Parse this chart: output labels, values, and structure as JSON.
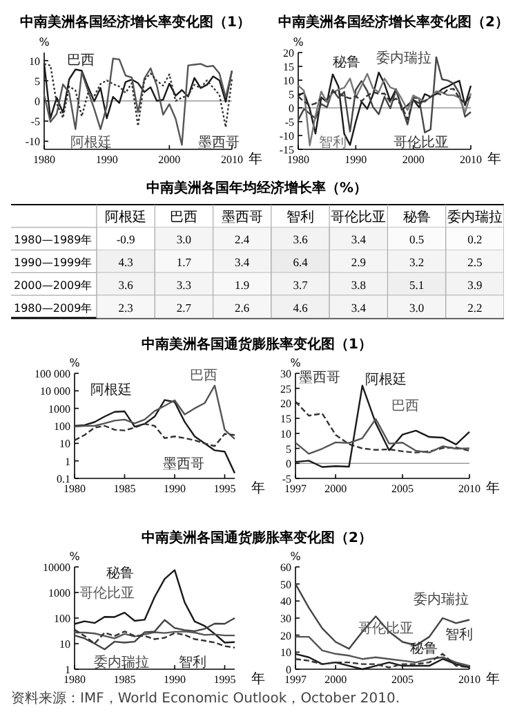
{
  "chart_data": [
    {
      "type": "line",
      "title": "中南美洲各国经济增长率变化图（1）",
      "ylabel": "%",
      "xlabel": "年",
      "xlim": [
        1980,
        2010
      ],
      "xticks": [
        1980,
        1990,
        2000,
        2010
      ],
      "ylim": [
        -12,
        12
      ],
      "yticks": [
        -10,
        -5,
        0,
        5,
        10
      ],
      "ref_lines": [
        {
          "axis": "y",
          "value": 0,
          "color": "#999999"
        }
      ],
      "x": [
        1980,
        1981,
        1982,
        1983,
        1984,
        1985,
        1986,
        1987,
        1988,
        1989,
        1990,
        1991,
        1992,
        1993,
        1994,
        1995,
        1996,
        1997,
        1998,
        1999,
        2000,
        2001,
        2002,
        2003,
        2004,
        2005,
        2006,
        2007,
        2008,
        2009,
        2010
      ],
      "series": [
        {
          "name": "巴西",
          "color": "#1a1a1a",
          "line_style": "solid",
          "values": [
            9.2,
            -4.3,
            0.8,
            -2.9,
            5.4,
            7.8,
            7.5,
            3.5,
            -0.1,
            3.2,
            -4.3,
            1.0,
            -0.5,
            4.7,
            5.3,
            4.4,
            2.2,
            3.4,
            0.0,
            0.3,
            4.3,
            1.3,
            2.7,
            1.1,
            5.7,
            3.2,
            4.0,
            6.1,
            5.1,
            -0.2,
            7.5
          ]
        },
        {
          "name": "阿根廷",
          "color": "#555555",
          "line_style": "solid",
          "values": [
            1.5,
            -5.2,
            -3.2,
            4.1,
            2.0,
            -7.0,
            7.1,
            2.5,
            -2.0,
            -7.0,
            -1.3,
            10.5,
            10.3,
            6.3,
            5.8,
            -2.8,
            5.5,
            8.1,
            3.8,
            -3.4,
            -0.8,
            -4.4,
            -10.9,
            8.8,
            9.0,
            9.2,
            8.5,
            8.7,
            6.8,
            0.9,
            7.5
          ]
        },
        {
          "name": "墨西哥",
          "color": "#333333",
          "line_style": "dotted",
          "values": [
            9.2,
            8.8,
            -0.6,
            -4.2,
            3.6,
            2.6,
            -3.8,
            1.9,
            1.2,
            4.2,
            5.1,
            4.2,
            3.6,
            2.0,
            4.4,
            -6.2,
            5.2,
            6.8,
            5.0,
            3.8,
            6.6,
            0.0,
            0.8,
            1.4,
            4.0,
            3.2,
            5.1,
            3.3,
            1.5,
            -6.5,
            5.5
          ]
        }
      ]
    },
    {
      "type": "line",
      "title": "中南美洲各国经济增长率变化图（2）",
      "ylabel": "%",
      "xlabel": "年",
      "xlim": [
        1980,
        2010
      ],
      "xticks": [
        1980,
        1990,
        2000,
        2010
      ],
      "ylim": [
        -15,
        20
      ],
      "yticks": [
        -15,
        -10,
        -5,
        0,
        5,
        10,
        15,
        20
      ],
      "ref_lines": [
        {
          "axis": "y",
          "value": 0,
          "color": "#999999"
        }
      ],
      "x": [
        1980,
        1981,
        1982,
        1983,
        1984,
        1985,
        1986,
        1987,
        1988,
        1989,
        1990,
        1991,
        1992,
        1993,
        1994,
        1995,
        1996,
        1997,
        1998,
        1999,
        2000,
        2001,
        2002,
        2003,
        2004,
        2005,
        2006,
        2007,
        2008,
        2009,
        2010
      ],
      "series": [
        {
          "name": "秘鲁",
          "color": "#1a1a1a",
          "line_style": "solid",
          "values": [
            4.4,
            5.5,
            -0.3,
            -9.3,
            3.8,
            2.1,
            12.1,
            7.7,
            -9.4,
            -13.4,
            -5.1,
            2.2,
            -0.4,
            4.8,
            12.8,
            8.6,
            2.5,
            6.8,
            -0.7,
            0.9,
            3.0,
            0.2,
            5.0,
            4.0,
            5.0,
            6.8,
            7.7,
            8.9,
            9.8,
            0.9,
            8.0
          ]
        },
        {
          "name": "委内瑞拉",
          "color": "#444444",
          "line_style": "solid",
          "values": [
            -4.4,
            -0.4,
            -2.1,
            -3.8,
            1.4,
            0.2,
            6.5,
            3.6,
            5.8,
            -8.6,
            6.5,
            9.7,
            6.1,
            0.3,
            -2.3,
            4.0,
            -0.2,
            6.4,
            0.3,
            -6.0,
            3.7,
            3.4,
            -8.9,
            -7.8,
            18.3,
            10.3,
            9.9,
            8.8,
            5.3,
            -3.2,
            -1.5
          ]
        },
        {
          "name": "智利",
          "color": "#777777",
          "line_style": "solid",
          "values": [
            8.1,
            6.2,
            -13.6,
            -2.8,
            5.9,
            2.0,
            5.6,
            6.6,
            7.3,
            10.6,
            3.7,
            8.0,
            12.3,
            7.0,
            5.7,
            10.6,
            7.4,
            6.6,
            3.2,
            -0.8,
            4.5,
            3.4,
            2.2,
            3.9,
            6.0,
            5.6,
            4.6,
            4.6,
            3.7,
            -1.7,
            5.2
          ]
        },
        {
          "name": "哥伦比亚",
          "color": "#333333",
          "line_style": "dashed",
          "values": [
            4.1,
            2.3,
            0.9,
            1.6,
            3.4,
            3.1,
            5.8,
            5.4,
            4.1,
            3.4,
            4.3,
            2.4,
            4.4,
            5.7,
            5.1,
            5.2,
            2.1,
            3.4,
            0.6,
            -4.2,
            2.9,
            1.7,
            2.5,
            3.9,
            5.3,
            4.7,
            6.7,
            6.9,
            3.5,
            1.7,
            4.3
          ]
        }
      ]
    },
    {
      "type": "heatmap",
      "title": "中南美洲各国年均经济增长率（%）",
      "data_labels": true,
      "categories": [
        "阿根廷",
        "巴西",
        "墨西哥",
        "智利",
        "哥伦比亚",
        "秘鲁",
        "委内瑞拉"
      ],
      "y_categories": [
        "1980—1989年",
        "1990—1999年",
        "2000—2009年",
        "1980—2009年"
      ],
      "cells": [
        [
          -0.9,
          3.0,
          2.4,
          3.6,
          3.4,
          0.5,
          0.2
        ],
        [
          4.3,
          1.7,
          3.4,
          6.4,
          2.9,
          3.2,
          2.5
        ],
        [
          3.6,
          3.3,
          1.9,
          3.7,
          3.8,
          5.1,
          3.9
        ],
        [
          2.3,
          2.7,
          2.6,
          4.6,
          3.4,
          3.0,
          2.2
        ]
      ],
      "cell_labels": [
        [
          "-0.9",
          "3.0",
          "2.4",
          "3.6",
          "3.4",
          "0.5",
          "0.2"
        ],
        [
          "4.3",
          "1.7",
          "3.4",
          "6.4",
          "2.9",
          "3.2",
          "2.5"
        ],
        [
          "3.6",
          "3.3",
          "1.9",
          "3.7",
          "3.8",
          "5.1",
          "3.9"
        ],
        [
          "2.3",
          "2.7",
          "2.6",
          "4.6",
          "3.4",
          "3.0",
          "2.2"
        ]
      ]
    },
    {
      "type": "line",
      "title": "中南美洲各国通货膨胀率变化图（1）",
      "ylabel": "%",
      "xlabel": "年",
      "log": true,
      "xlim": [
        1980,
        1996
      ],
      "xticks": [
        1980,
        1985,
        1990,
        1995
      ],
      "ylim": [
        0.1,
        100000
      ],
      "yticks": [
        0.1,
        1,
        10,
        100,
        1000,
        {
          "value": 10000,
          "label": "10 000"
        },
        {
          "value": 100000,
          "label": "100 000"
        }
      ],
      "x": [
        1980,
        1981,
        1982,
        1983,
        1984,
        1985,
        1986,
        1987,
        1988,
        1989,
        1990,
        1991,
        1992,
        1993,
        1994,
        1995,
        1996
      ],
      "series": [
        {
          "name": "阿根廷",
          "color": "#1a1a1a",
          "line_style": "solid",
          "values": [
            100,
            110,
            165,
            340,
            630,
            670,
            90,
            130,
            340,
            3000,
            2300,
            170,
            25,
            10,
            4,
            3.4,
            0.2
          ]
        },
        {
          "name": "巴西",
          "color": "#555555",
          "line_style": "solid",
          "values": [
            90,
            100,
            100,
            140,
            200,
            230,
            140,
            230,
            700,
            1400,
            2900,
            450,
            1000,
            2000,
            20000,
            60,
            18
          ]
        },
        {
          "name": "墨西哥",
          "color": "#333333",
          "line_style": "dashed",
          "values": [
            15,
            30,
            80,
            100,
            60,
            55,
            80,
            130,
            100,
            20,
            25,
            20,
            15,
            10,
            7,
            35,
            30
          ]
        }
      ]
    },
    {
      "type": "line",
      "ylabel": "%",
      "xlabel": "年",
      "xlim": [
        1997,
        2010
      ],
      "xticks": [
        1997,
        2000,
        2005,
        2010
      ],
      "ylim": [
        -5,
        30
      ],
      "yticks": [
        -5,
        0,
        5,
        10,
        15,
        20,
        25,
        30
      ],
      "ref_lines": [
        {
          "axis": "y",
          "value": 0,
          "color": "#999999"
        }
      ],
      "x": [
        1997,
        1998,
        1999,
        2000,
        2001,
        2002,
        2003,
        2004,
        2005,
        2006,
        2007,
        2008,
        2009,
        2010
      ],
      "series": [
        {
          "name": "墨西哥",
          "color": "#333333",
          "line_style": "dashed",
          "values": [
            20.6,
            15.9,
            16.6,
            9.5,
            6.4,
            5.0,
            4.5,
            4.7,
            4.0,
            3.6,
            4.0,
            5.1,
            5.3,
            4.2
          ]
        },
        {
          "name": "阿根廷",
          "color": "#1a1a1a",
          "line_style": "solid",
          "values": [
            0.5,
            0.9,
            -1.2,
            -0.9,
            -1.1,
            25.9,
            13.4,
            4.4,
            9.6,
            10.9,
            8.8,
            8.6,
            6.3,
            10.5
          ]
        },
        {
          "name": "巴西",
          "color": "#555555",
          "line_style": "solid",
          "values": [
            6.9,
            3.2,
            4.9,
            7.0,
            6.8,
            8.4,
            14.8,
            6.6,
            6.9,
            4.2,
            3.6,
            5.7,
            4.9,
            5.0
          ]
        }
      ]
    },
    {
      "type": "line",
      "title": "中南美洲各国通货膨胀率变化图（2）",
      "ylabel": "%",
      "xlabel": "年",
      "log": true,
      "xlim": [
        1980,
        1996
      ],
      "xticks": [
        1980,
        1985,
        1990,
        1995
      ],
      "ylim": [
        1,
        10000
      ],
      "yticks": [
        1,
        10,
        100,
        1000,
        10000
      ],
      "x": [
        1980,
        1981,
        1982,
        1983,
        1984,
        1985,
        1986,
        1987,
        1988,
        1989,
        1990,
        1991,
        1992,
        1993,
        1994,
        1995,
        1996
      ],
      "series": [
        {
          "name": "秘鲁",
          "color": "#1a1a1a",
          "line_style": "solid",
          "values": [
            59,
            75,
            64,
            111,
            110,
            163,
            78,
            86,
            668,
            3399,
            7482,
            410,
            74,
            49,
            24,
            11,
            11.5
          ]
        },
        {
          "name": "哥伦比亚",
          "color": "#555555",
          "line_style": "solid",
          "values": [
            27,
            27,
            25,
            20,
            16,
            24,
            19,
            23,
            28,
            26,
            29,
            30,
            27,
            22,
            23,
            21,
            21
          ]
        },
        {
          "name": "委内瑞拉",
          "color": "#444444",
          "line_style": "solid",
          "values": [
            21,
            16,
            10,
            6,
            12,
            11,
            12,
            28,
            30,
            84,
            41,
            34,
            31,
            38,
            61,
            60,
            100
          ]
        },
        {
          "name": "智利",
          "color": "#333333",
          "line_style": "dashed",
          "values": [
            35,
            20,
            10,
            27,
            20,
            30,
            20,
            20,
            15,
            17,
            26,
            22,
            15,
            13,
            11,
            8,
            7
          ]
        }
      ]
    },
    {
      "type": "line",
      "ylabel": "%",
      "xlabel": "年",
      "xlim": [
        1997,
        2010
      ],
      "xticks": [
        1997,
        2000,
        2005,
        2010
      ],
      "ylim": [
        0,
        60
      ],
      "yticks": [
        0,
        10,
        20,
        30,
        40,
        50,
        60
      ],
      "annotations": [
        "资料来源：IMF，World Economic Outlook，October 2010."
      ],
      "x": [
        1997,
        1998,
        1999,
        2000,
        2001,
        2002,
        2003,
        2004,
        2005,
        2006,
        2007,
        2008,
        2009,
        2010
      ],
      "series": [
        {
          "name": "委内瑞拉",
          "color": "#444444",
          "line_style": "solid",
          "values": [
            50,
            36,
            24,
            16,
            12,
            22,
            31,
            22,
            16,
            14,
            19,
            30,
            27,
            29
          ]
        },
        {
          "name": "哥伦比亚",
          "color": "#555555",
          "line_style": "solid",
          "values": [
            19,
            19,
            11,
            9,
            8,
            6,
            7,
            6,
            5,
            4,
            6,
            7,
            4,
            2
          ]
        },
        {
          "name": "秘鲁",
          "color": "#1a1a1a",
          "line_style": "solid",
          "values": [
            9,
            7,
            3,
            4,
            2,
            0,
            2,
            4,
            2,
            2,
            2,
            6,
            3,
            1
          ]
        },
        {
          "name": "智利",
          "color": "#333333",
          "line_style": "dashed",
          "values": [
            6,
            5,
            3,
            4,
            4,
            3,
            3,
            1,
            3,
            3,
            4,
            9,
            2,
            1
          ]
        }
      ]
    }
  ]
}
